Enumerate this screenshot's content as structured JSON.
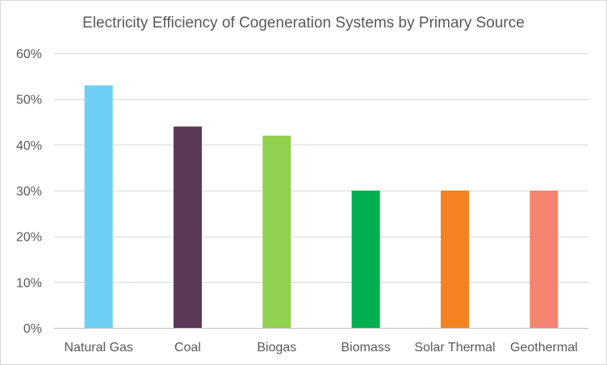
{
  "chart_data": {
    "type": "bar",
    "title": "Electricity Efficiency of Cogeneration Systems by Primary Source",
    "xlabel": "",
    "ylabel": "",
    "categories": [
      "Natural Gas",
      "Coal",
      "Biogas",
      "Biomass",
      "Solar Thermal",
      "Geothermal"
    ],
    "values": [
      53,
      44,
      42,
      30,
      30,
      30
    ],
    "value_format": "percent",
    "ylim": [
      0,
      60
    ],
    "yticks": [
      0,
      10,
      20,
      30,
      40,
      50,
      60
    ],
    "ytick_labels": [
      "0%",
      "10%",
      "20%",
      "30%",
      "40%",
      "50%",
      "60%"
    ],
    "grid": true,
    "legend": "none",
    "colors": [
      "#6dcff6",
      "#5b3a57",
      "#92d050",
      "#00b050",
      "#f58220",
      "#f4836f"
    ]
  },
  "colors": {
    "text": "#595959",
    "gridline": "#d9d9d9",
    "axis": "#bfbfbf"
  }
}
